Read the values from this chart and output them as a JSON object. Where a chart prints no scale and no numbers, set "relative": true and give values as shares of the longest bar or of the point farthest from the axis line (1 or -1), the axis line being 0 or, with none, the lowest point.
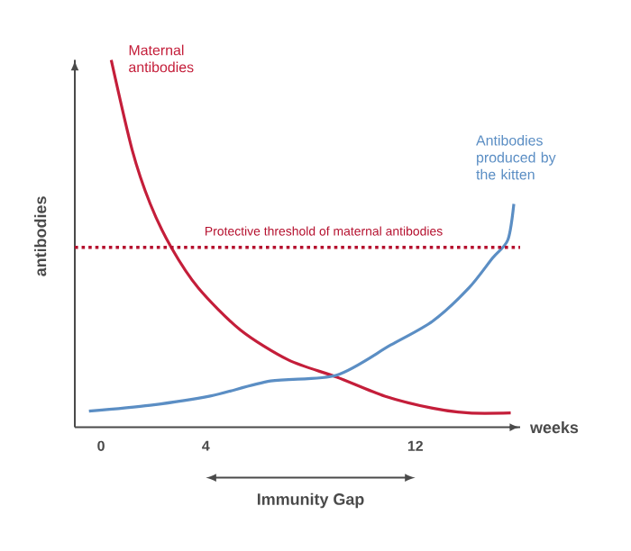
{
  "chart_data": {
    "type": "line",
    "relative": true,
    "ylabel": "antibodies",
    "xlabel": "weeks",
    "xlim": [
      -1,
      16
    ],
    "xticks": [
      0,
      4,
      12
    ],
    "series": [
      {
        "name": "Maternal antibodies",
        "color": "#c41e3a",
        "x": [
          0.39,
          1.19,
          1.88,
          2.68,
          3.72,
          5.32,
          7.16,
          8.99,
          10.83,
          12.66,
          14.04,
          15.64
        ],
        "values": [
          1.0,
          0.755,
          0.608,
          0.49,
          0.379,
          0.265,
          0.183,
          0.137,
          0.085,
          0.052,
          0.039,
          0.039
        ]
      },
      {
        "name": "Antibodies produced by the kitten",
        "color": "#5b8ec4",
        "x": [
          -0.46,
          1.88,
          4.17,
          6.47,
          8.99,
          11.06,
          12.66,
          14.04,
          14.95,
          15.53,
          15.76
        ],
        "values": [
          0.044,
          0.06,
          0.085,
          0.126,
          0.142,
          0.224,
          0.289,
          0.379,
          0.461,
          0.51,
          0.608
        ]
      }
    ],
    "ref_lines": [
      {
        "axis": "y",
        "value": 0.49,
        "label": "Protective threshold of maternal antibodies",
        "color": "#b5102e",
        "line_style": "dotted"
      }
    ],
    "annotations": [
      "Immunity Gap"
    ],
    "grid": false,
    "legend": false
  }
}
